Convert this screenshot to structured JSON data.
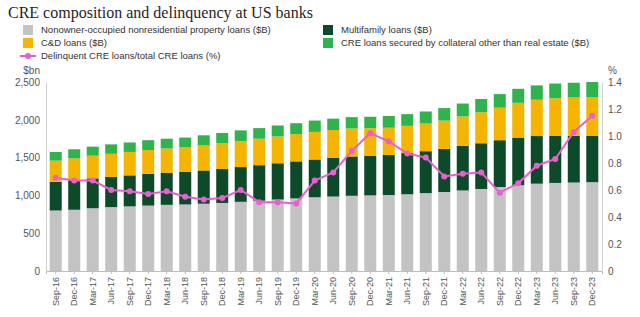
{
  "chart_data": {
    "type": "bar",
    "stacked": true,
    "title": "CRE composition and delinquency at US banks",
    "y_label": "$bn",
    "y2_label": "%",
    "categories": [
      "Sep-16",
      "Dec-16",
      "Mar-17",
      "Jun-17",
      "Sep-17",
      "Dec-17",
      "Mar-18",
      "Jun-18",
      "Sep-18",
      "Dec-18",
      "Mar-19",
      "Jun-19",
      "Sep-19",
      "Dec-19",
      "Mar-20",
      "Jun-20",
      "Sep-20",
      "Dec-20",
      "Mar-21",
      "Jun-21",
      "Sep-21",
      "Dec-21",
      "Mar-22",
      "Jun-22",
      "Sep-22",
      "Dec-22",
      "Mar-23",
      "Jun-23",
      "Sep-23",
      "Dec-23"
    ],
    "series": [
      {
        "name": "Nonowner-occupied nonresidential property loans ($B)",
        "color": "#c3c3c3",
        "type": "bar",
        "values": [
          800,
          810,
          830,
          845,
          855,
          865,
          875,
          880,
          890,
          900,
          915,
          930,
          945,
          960,
          975,
          985,
          995,
          1000,
          1005,
          1015,
          1030,
          1045,
          1065,
          1085,
          1110,
          1135,
          1155,
          1165,
          1170,
          1175
        ]
      },
      {
        "name": "Multifamily loans ($B)",
        "color": "#0d4a2a",
        "type": "bar",
        "values": [
          380,
          390,
          395,
          400,
          410,
          420,
          425,
          430,
          440,
          450,
          460,
          470,
          480,
          490,
          500,
          510,
          520,
          525,
          530,
          545,
          555,
          570,
          590,
          605,
          620,
          630,
          630,
          625,
          620,
          615
        ]
      },
      {
        "name": "C&D loans ($B)",
        "color": "#f4b400",
        "type": "bar",
        "values": [
          280,
          290,
          300,
          305,
          310,
          315,
          320,
          325,
          330,
          340,
          345,
          350,
          355,
          360,
          365,
          370,
          370,
          365,
          360,
          360,
          365,
          375,
          390,
          410,
          430,
          460,
          480,
          495,
          505,
          510
        ]
      },
      {
        "name": "CRE loans secured by collateral other than real estate ($B)",
        "color": "#2fb34c",
        "type": "bar",
        "values": [
          115,
          120,
          120,
          125,
          125,
          130,
          130,
          130,
          135,
          135,
          140,
          140,
          145,
          145,
          150,
          150,
          150,
          150,
          155,
          155,
          160,
          165,
          170,
          175,
          180,
          185,
          190,
          195,
          195,
          200
        ]
      },
      {
        "name": "Delinquent CRE loans/total CRE loans (%)",
        "color": "#e95fd2",
        "type": "line",
        "axis": "y2",
        "marker": "circle",
        "values": [
          0.69,
          0.67,
          0.67,
          0.6,
          0.59,
          0.57,
          0.59,
          0.55,
          0.53,
          0.54,
          0.6,
          0.51,
          0.51,
          0.5,
          0.67,
          0.73,
          0.89,
          1.02,
          0.96,
          0.87,
          0.84,
          0.7,
          0.72,
          0.73,
          0.58,
          0.65,
          0.78,
          0.83,
          1.03,
          1.15
        ]
      }
    ],
    "ylim": [
      0,
      2500
    ],
    "yticks": [
      0,
      500,
      {
        "value": 1000,
        "label": "1,000"
      },
      {
        "value": 1500,
        "label": "1,500"
      },
      {
        "value": 2000,
        "label": "2,000"
      },
      {
        "value": 2500,
        "label": "2,500"
      }
    ],
    "y2lim": [
      0,
      1.4
    ],
    "y2ticks": [
      0,
      0.2,
      0.4,
      0.6,
      0.8,
      {
        "value": 1,
        "label": "1.0"
      },
      1.2,
      1.4
    ]
  }
}
